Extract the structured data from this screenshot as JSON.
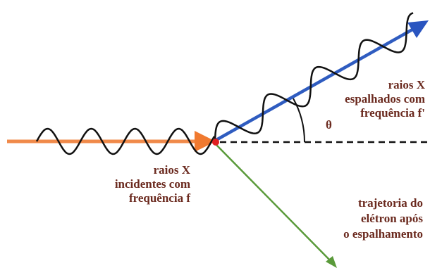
{
  "labels": {
    "incident": [
      "raios X",
      "incidentes com",
      "frequência f"
    ],
    "scattered": [
      "raios X",
      "espalhados com",
      "frequência f'"
    ],
    "electron": [
      "trajetoria do",
      "elétron após",
      "o espalhamento"
    ],
    "angle": "θ"
  }
}
